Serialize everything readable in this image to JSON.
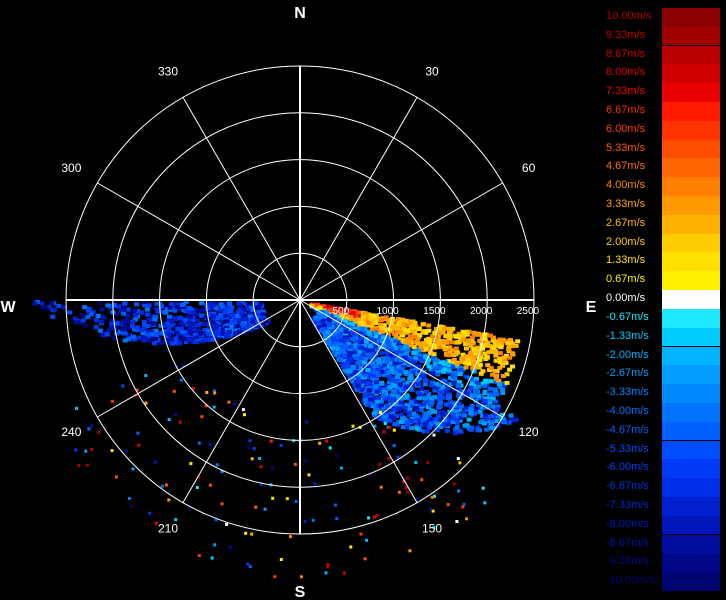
{
  "compass": {
    "north": "N",
    "south": "S",
    "east": "E",
    "west": "W"
  },
  "bearings": [
    {
      "deg": 330,
      "label": "330"
    },
    {
      "deg": 30,
      "label": "30"
    },
    {
      "deg": 300,
      "label": "300"
    },
    {
      "deg": 60,
      "label": "60"
    },
    {
      "deg": 240,
      "label": "240"
    },
    {
      "deg": 120,
      "label": "120"
    },
    {
      "deg": 210,
      "label": "210"
    },
    {
      "deg": 150,
      "label": "150"
    }
  ],
  "range_labels": [
    "500",
    "1000",
    "1500",
    "2000",
    "2500"
  ],
  "legend": [
    {
      "label": "10.00m/s",
      "color": "#8b0000",
      "text_color": "#b00000"
    },
    {
      "label": "9.33m/s",
      "color": "#a00000",
      "text_color": "#c00000"
    },
    {
      "label": "8.67m/s",
      "color": "#b80000",
      "text_color": "#d00000"
    },
    {
      "label": "8.00m/s",
      "color": "#d00000",
      "text_color": "#e00000"
    },
    {
      "label": "7.33m/s",
      "color": "#e80000",
      "text_color": "#f00000"
    },
    {
      "label": "6.67m/s",
      "color": "#ff1a00",
      "text_color": "#ff2a00"
    },
    {
      "label": "6.00m/s",
      "color": "#ff3300",
      "text_color": "#ff3d00"
    },
    {
      "label": "5.33m/s",
      "color": "#ff4d00",
      "text_color": "#ff5500"
    },
    {
      "label": "4.67m/s",
      "color": "#ff6600",
      "text_color": "#ff7000"
    },
    {
      "label": "4.00m/s",
      "color": "#ff8000",
      "text_color": "#ff8800"
    },
    {
      "label": "3.33m/s",
      "color": "#ff9900",
      "text_color": "#ffa000"
    },
    {
      "label": "2.67m/s",
      "color": "#ffb300",
      "text_color": "#ffb800"
    },
    {
      "label": "2.00m/s",
      "color": "#ffcc00",
      "text_color": "#ffcc00"
    },
    {
      "label": "1.33m/s",
      "color": "#ffe000",
      "text_color": "#ffe000"
    },
    {
      "label": "0.67m/s",
      "color": "#fff000",
      "text_color": "#fff000"
    },
    {
      "label": "0.00m/s",
      "color": "#ffffff",
      "text_color": "#ffffff"
    },
    {
      "label": "-0.67m/s",
      "color": "#1ee8ff",
      "text_color": "#1ee8ff"
    },
    {
      "label": "-1.33m/s",
      "color": "#00ccff",
      "text_color": "#00ccff"
    },
    {
      "label": "-2.00m/s",
      "color": "#00b3ff",
      "text_color": "#00b3ff"
    },
    {
      "label": "-2.67m/s",
      "color": "#009cff",
      "text_color": "#009cff"
    },
    {
      "label": "-3.33m/s",
      "color": "#0088ff",
      "text_color": "#0088ff"
    },
    {
      "label": "-4.00m/s",
      "color": "#0073ff",
      "text_color": "#0073ff"
    },
    {
      "label": "-4.67m/s",
      "color": "#0060ff",
      "text_color": "#0060ff"
    },
    {
      "label": "-5.33m/s",
      "color": "#004dff",
      "text_color": "#004dff"
    },
    {
      "label": "-6.00m/s",
      "color": "#003cf5",
      "text_color": "#0040f0"
    },
    {
      "label": "-6.67m/s",
      "color": "#002de6",
      "text_color": "#0034e0"
    },
    {
      "label": "-7.33m/s",
      "color": "#0020d0",
      "text_color": "#0028d0"
    },
    {
      "label": "-8.00m/s",
      "color": "#0016b8",
      "text_color": "#001cc0"
    },
    {
      "label": "-8.67m/s",
      "color": "#000ea0",
      "text_color": "#0012a8"
    },
    {
      "label": "-9.33m/s",
      "color": "#000888",
      "text_color": "#000c90"
    },
    {
      "label": "-10.00m/s",
      "color": "#000470",
      "text_color": "#000678"
    }
  ]
}
